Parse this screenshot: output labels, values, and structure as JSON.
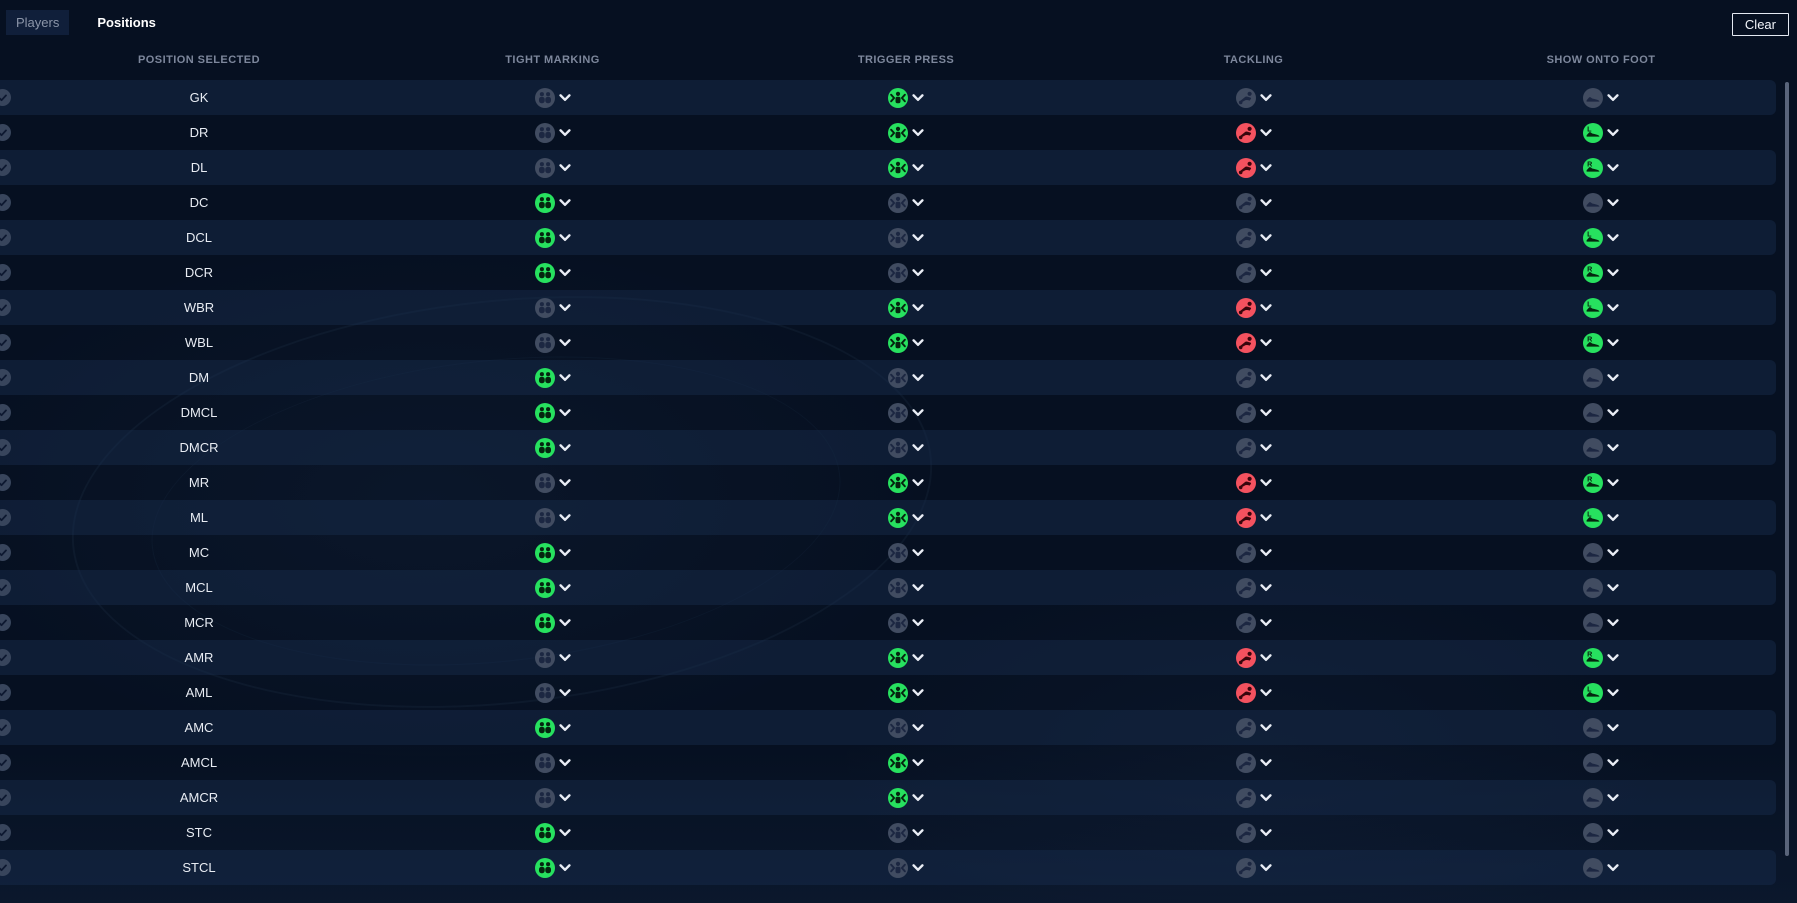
{
  "tabs": [
    {
      "label": "Players",
      "active": false
    },
    {
      "label": "Positions",
      "active": true
    }
  ],
  "toolbar": {
    "clear_label": "Clear"
  },
  "columns": [
    "POSITION SELECTED",
    "TIGHT MARKING",
    "TRIGGER PRESS",
    "TACKLING",
    "SHOW ONTO FOOT"
  ],
  "colors": {
    "active_green": "#27e15f",
    "active_red": "#f4525f",
    "inactive_circle": "#414c61",
    "inactive_glyph": "#1c2742",
    "green_glyph": "#05240f",
    "red_glyph": "#38060d",
    "chevron": "#e9edf5"
  },
  "icons": {
    "tight_marking": "tight-marking-icon",
    "trigger_press": "trigger-press-icon",
    "tackling": "sliding-tackle-icon",
    "show_onto_foot": "boot-icon",
    "dropdown": "chevron-down-icon",
    "row_check": "check-circle-icon"
  },
  "rows": [
    {
      "position": "GK",
      "tight_marking": "off",
      "trigger_press": "on",
      "tackling": "off",
      "show_onto_foot": "off"
    },
    {
      "position": "DR",
      "tight_marking": "off",
      "trigger_press": "on",
      "tackling": "on",
      "show_onto_foot": "L"
    },
    {
      "position": "DL",
      "tight_marking": "off",
      "trigger_press": "on",
      "tackling": "on",
      "show_onto_foot": "R"
    },
    {
      "position": "DC",
      "tight_marking": "on",
      "trigger_press": "off",
      "tackling": "off",
      "show_onto_foot": "off"
    },
    {
      "position": "DCL",
      "tight_marking": "on",
      "trigger_press": "off",
      "tackling": "off",
      "show_onto_foot": "L"
    },
    {
      "position": "DCR",
      "tight_marking": "on",
      "trigger_press": "off",
      "tackling": "off",
      "show_onto_foot": "R"
    },
    {
      "position": "WBR",
      "tight_marking": "off",
      "trigger_press": "on",
      "tackling": "on",
      "show_onto_foot": "L"
    },
    {
      "position": "WBL",
      "tight_marking": "off",
      "trigger_press": "on",
      "tackling": "on",
      "show_onto_foot": "R"
    },
    {
      "position": "DM",
      "tight_marking": "on",
      "trigger_press": "off",
      "tackling": "off",
      "show_onto_foot": "off"
    },
    {
      "position": "DMCL",
      "tight_marking": "on",
      "trigger_press": "off",
      "tackling": "off",
      "show_onto_foot": "off"
    },
    {
      "position": "DMCR",
      "tight_marking": "on",
      "trigger_press": "off",
      "tackling": "off",
      "show_onto_foot": "off"
    },
    {
      "position": "MR",
      "tight_marking": "off",
      "trigger_press": "on",
      "tackling": "on",
      "show_onto_foot": "R"
    },
    {
      "position": "ML",
      "tight_marking": "off",
      "trigger_press": "on",
      "tackling": "on",
      "show_onto_foot": "L"
    },
    {
      "position": "MC",
      "tight_marking": "on",
      "trigger_press": "off",
      "tackling": "off",
      "show_onto_foot": "off"
    },
    {
      "position": "MCL",
      "tight_marking": "on",
      "trigger_press": "off",
      "tackling": "off",
      "show_onto_foot": "off"
    },
    {
      "position": "MCR",
      "tight_marking": "on",
      "trigger_press": "off",
      "tackling": "off",
      "show_onto_foot": "off"
    },
    {
      "position": "AMR",
      "tight_marking": "off",
      "trigger_press": "on",
      "tackling": "on",
      "show_onto_foot": "R"
    },
    {
      "position": "AML",
      "tight_marking": "off",
      "trigger_press": "on",
      "tackling": "on",
      "show_onto_foot": "L"
    },
    {
      "position": "AMC",
      "tight_marking": "on",
      "trigger_press": "off",
      "tackling": "off",
      "show_onto_foot": "off"
    },
    {
      "position": "AMCL",
      "tight_marking": "off",
      "trigger_press": "on",
      "tackling": "off",
      "show_onto_foot": "off"
    },
    {
      "position": "AMCR",
      "tight_marking": "off",
      "trigger_press": "on",
      "tackling": "off",
      "show_onto_foot": "off"
    },
    {
      "position": "STC",
      "tight_marking": "on",
      "trigger_press": "off",
      "tackling": "off",
      "show_onto_foot": "off"
    },
    {
      "position": "STCL",
      "tight_marking": "on",
      "trigger_press": "off",
      "tackling": "off",
      "show_onto_foot": "off"
    }
  ]
}
